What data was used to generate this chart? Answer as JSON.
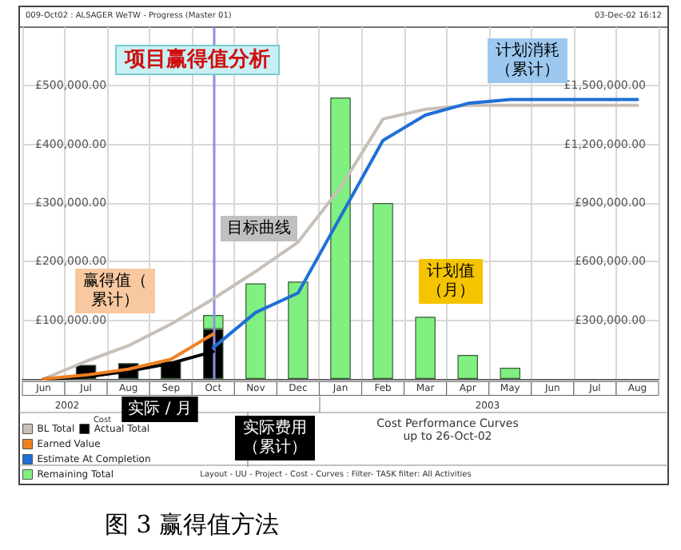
{
  "chart_data": {
    "type": "bar",
    "title": "项目赢得值分析",
    "categories": [
      "Jun",
      "Jul",
      "Aug",
      "Sep",
      "Oct",
      "Nov",
      "Dec",
      "Jan",
      "Feb",
      "Mar",
      "Apr",
      "May",
      "Jun",
      "Jul",
      "Aug"
    ],
    "series": [
      {
        "name": "BL Total",
        "type": "line",
        "axis": "y2",
        "color": "#c8c0b8",
        "values": [
          0,
          90000,
          170000,
          280000,
          410000,
          550000,
          700000,
          980000,
          1330000,
          1380000,
          1400000,
          1400000,
          1400000,
          1400000,
          1400000
        ]
      },
      {
        "name": "Actual Total",
        "type": "line",
        "axis": "y2",
        "color": "#000000",
        "values": [
          0,
          10000,
          40000,
          80000,
          140000,
          null,
          null,
          null,
          null,
          null,
          null,
          null,
          null,
          null,
          null
        ]
      },
      {
        "name": "Earned Value",
        "type": "line",
        "axis": "y2",
        "color": "#f08020",
        "values": [
          0,
          20000,
          50000,
          100000,
          230000,
          null,
          null,
          null,
          null,
          null,
          null,
          null,
          null,
          null,
          null
        ]
      },
      {
        "name": "Estimate At Completion",
        "type": "line",
        "axis": "y2",
        "color": "#1f6fd6",
        "values": [
          null,
          null,
          null,
          null,
          160000,
          340000,
          440000,
          830000,
          1220000,
          1350000,
          1410000,
          1430000,
          1430000,
          1430000,
          1430000
        ]
      },
      {
        "color": "#000000",
        "values": [
          null,
          24000,
          27000,
          30000,
          85000,
          null,
          null,
          null,
          null,
          null,
          null,
          null,
          null,
          null,
          null
        ]
      },
      {
        "name": "Remaining Total",
        "color": "#80f080",
        "values": [
          null,
          null,
          null,
          null,
          24000,
          163000,
          166000,
          480000,
          300000,
          106000,
          41000,
          19000,
          null,
          null,
          null
        ]
      }
    ],
    "stacked": true,
    "ylim": [
      0,
      600000
    ],
    "yticks": [
      {
        "value": 100000,
        "label": "£100,000.00"
      },
      {
        "value": 200000,
        "label": "£200,000.00"
      },
      {
        "value": 300000,
        "label": "£300,000.00"
      },
      {
        "value": 400000,
        "label": "£400,000.00"
      },
      {
        "value": 500000,
        "label": "£500,000.00"
      }
    ],
    "y2lim": [
      0,
      1800000
    ],
    "y2ticks": [
      {
        "value": 300000,
        "label": "£300,000.00"
      },
      {
        "value": 600000,
        "label": "£600,000.00"
      },
      {
        "value": 900000,
        "label": "£900,000.00"
      },
      {
        "value": 1200000,
        "label": "£1,200,000.00"
      },
      {
        "value": 1500000,
        "label": "£1,500,000.00"
      }
    ],
    "ref_lines": [
      {
        "axis": "x",
        "value": "Oct",
        "color": "#9090e0"
      }
    ],
    "grid": true,
    "legend": "bottom left",
    "marker": "none",
    "line_style": "solid",
    "annotations": [
      "009-Oct02 : ALSAGER WeTW - Progress (Master 01)",
      "03-Dec-02 16:12",
      "计划消耗（累计）",
      "目标曲线",
      "赢得值（累计）",
      "计划值（月）",
      "实际 / 月",
      "实际费用（累计）",
      "2002",
      "2003",
      "Cost",
      "Cost Performance Curves",
      "up to 26-Oct-02",
      "Layout - UU - Project - Cost - Curves : Filter- TASK filter: All Activities",
      "图 3 赢得值方法"
    ]
  }
}
